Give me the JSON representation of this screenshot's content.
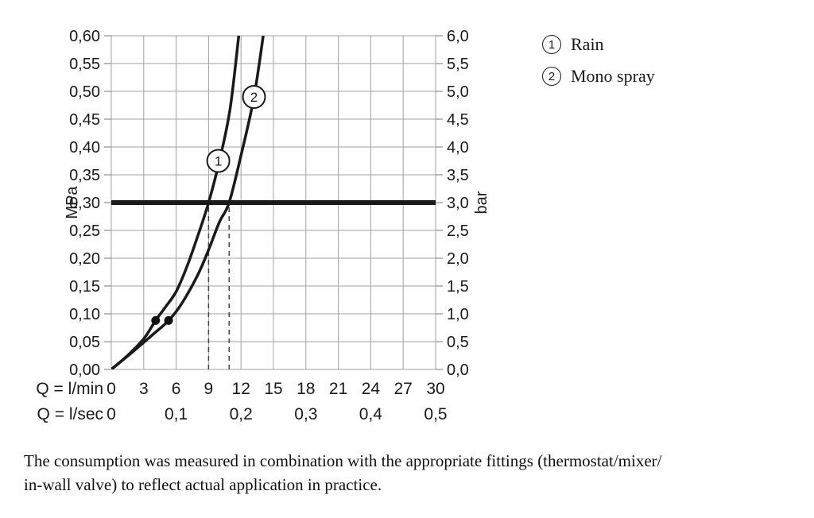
{
  "chart_data": {
    "type": "line",
    "x_range": [
      0,
      30
    ],
    "y_left_range": [
      0,
      0.6
    ],
    "y_right_range": [
      0,
      6
    ],
    "x_grid_step": 3,
    "y_grid_step": 0.05,
    "axes": {
      "left_unit": "MPa",
      "right_unit": "bar",
      "left_ticks": [
        "0,60",
        "0,55",
        "0,50",
        "0,45",
        "0,40",
        "0,35",
        "0,30",
        "0,25",
        "0,20",
        "0,15",
        "0,10",
        "0,05",
        "0,00"
      ],
      "right_ticks": [
        "6,0",
        "5,5",
        "5,0",
        "4,5",
        "4,0",
        "3,5",
        "3,0",
        "2,5",
        "2,0",
        "1,5",
        "1,0",
        "0,5",
        "0,0"
      ],
      "bottom_min_label": "Q = l/min",
      "bottom_min_ticks": [
        "0",
        "3",
        "6",
        "9",
        "12",
        "15",
        "18",
        "21",
        "24",
        "27",
        "30"
      ],
      "bottom_sec_label": "Q = l/sec",
      "bottom_sec_ticks": [
        {
          "x": 0,
          "t": "0"
        },
        {
          "x": 6,
          "t": "0,1"
        },
        {
          "x": 12,
          "t": "0,2"
        },
        {
          "x": 18,
          "t": "0,3"
        },
        {
          "x": 24,
          "t": "0,4"
        },
        {
          "x": 30,
          "t": "0,5"
        }
      ]
    },
    "series": [
      {
        "id": "1",
        "name": "Rain",
        "points": [
          [
            0,
            0
          ],
          [
            1.5,
            0.025
          ],
          [
            3,
            0.055
          ],
          [
            4.1,
            0.088
          ],
          [
            5,
            0.112
          ],
          [
            6,
            0.14
          ],
          [
            7,
            0.185
          ],
          [
            8,
            0.24
          ],
          [
            9,
            0.3
          ],
          [
            10,
            0.375
          ],
          [
            11,
            0.47
          ],
          [
            11.9,
            0.62
          ]
        ],
        "label_at": [
          9.9,
          0.375
        ],
        "dot_at": [
          4.1,
          0.088
        ]
      },
      {
        "id": "2",
        "name": "Mono spray",
        "points": [
          [
            0,
            0
          ],
          [
            2,
            0.032
          ],
          [
            3.8,
            0.062
          ],
          [
            5.3,
            0.088
          ],
          [
            6.5,
            0.118
          ],
          [
            8,
            0.17
          ],
          [
            9,
            0.215
          ],
          [
            10,
            0.265
          ],
          [
            10.9,
            0.3
          ],
          [
            12,
            0.385
          ],
          [
            13.2,
            0.49
          ],
          [
            14.2,
            0.62
          ]
        ],
        "label_at": [
          13.2,
          0.49
        ],
        "dot_at": [
          5.3,
          0.088
        ]
      }
    ],
    "reference_line_y": 0.3,
    "dashed_x": [
      9,
      10.9
    ],
    "colors": {
      "curve": "#1a1a1a",
      "grid": "#a0a0a0",
      "reference": "#1a1a1a",
      "dashed": "#444444",
      "dot": "#111111"
    }
  },
  "legend": {
    "items": [
      {
        "num": "1",
        "label": "Rain"
      },
      {
        "num": "2",
        "label": "Mono spray"
      }
    ]
  },
  "caption": {
    "line1": "The consumption was measured in combination with the appropriate fittings (thermostat/mixer/",
    "line2": "in-wall valve) to reflect actual application in practice."
  }
}
